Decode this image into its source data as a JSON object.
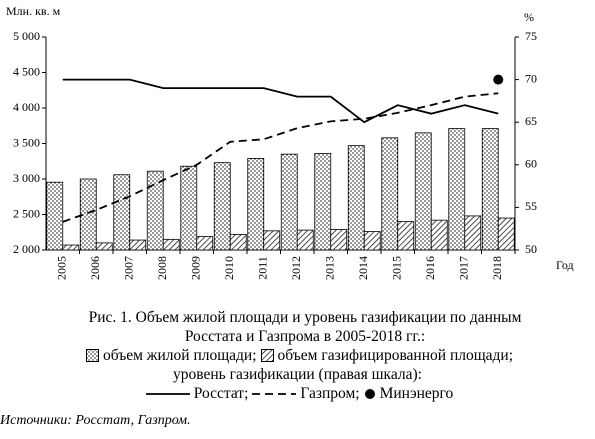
{
  "chart_data": {
    "type": "bar-line",
    "title": "Рис. 1. Объем жилой площади и уровень газификации по данным Росстата и Газпрома в 2005-2018 гг.:",
    "y_label": "Млн. кв. м",
    "y2_label": "%",
    "x_label": "Год",
    "legend_title": "уровень газификации (правая шкала):",
    "source": "Источники: Росстат, Газпром.",
    "categories": [
      "2005",
      "2006",
      "2007",
      "2008",
      "2009",
      "2010",
      "2011",
      "2012",
      "2013",
      "2014",
      "2015",
      "2016",
      "2017",
      "2018"
    ],
    "ylim": [
      2000,
      5000
    ],
    "yticks": [
      {
        "value": 2000,
        "label": "2 000"
      },
      {
        "value": 2500,
        "label": "2 500"
      },
      {
        "value": 3000,
        "label": "3 000"
      },
      {
        "value": 3500,
        "label": "3 500"
      },
      {
        "value": 4000,
        "label": "4 000"
      },
      {
        "value": 4500,
        "label": "4 500"
      },
      {
        "value": 5000,
        "label": "5 000"
      }
    ],
    "y2lim": [
      50,
      75
    ],
    "y2ticks": [
      50,
      55,
      60,
      65,
      70,
      75
    ],
    "series": [
      {
        "name": "объем жилой площади;",
        "mark": "bar",
        "pattern": "dots",
        "color": "#000000",
        "values": [
          2955,
          3000,
          3060,
          3110,
          3180,
          3230,
          3290,
          3350,
          3360,
          3470,
          3580,
          3650,
          3710,
          3710
        ]
      },
      {
        "name": "объем газифицированной площади;",
        "mark": "bar",
        "pattern": "hatch",
        "color": "#000000",
        "values": [
          2070,
          2100,
          2140,
          2150,
          2190,
          2220,
          2270,
          2280,
          2290,
          2260,
          2400,
          2420,
          2480,
          2450
        ]
      },
      {
        "name": "Росстат;",
        "mark": "line",
        "dash": "solid",
        "axis": "y2",
        "color": "#000000",
        "values": [
          70,
          70,
          70,
          69,
          69,
          69,
          69,
          68,
          68,
          65,
          67,
          66,
          67,
          66
        ]
      },
      {
        "name": "Газпром;",
        "mark": "line",
        "dash": "dashed",
        "axis": "y2",
        "color": "#000000",
        "values": [
          53.3,
          54.7,
          56.3,
          58.2,
          60,
          62.7,
          63,
          64.3,
          65.1,
          65.4,
          66.1,
          67,
          68,
          68.4
        ]
      },
      {
        "name": "Минэнерго",
        "mark": "point",
        "axis": "y2",
        "color": "#000000",
        "values": [
          null,
          null,
          null,
          null,
          null,
          null,
          null,
          null,
          null,
          null,
          null,
          null,
          null,
          70
        ]
      }
    ]
  }
}
